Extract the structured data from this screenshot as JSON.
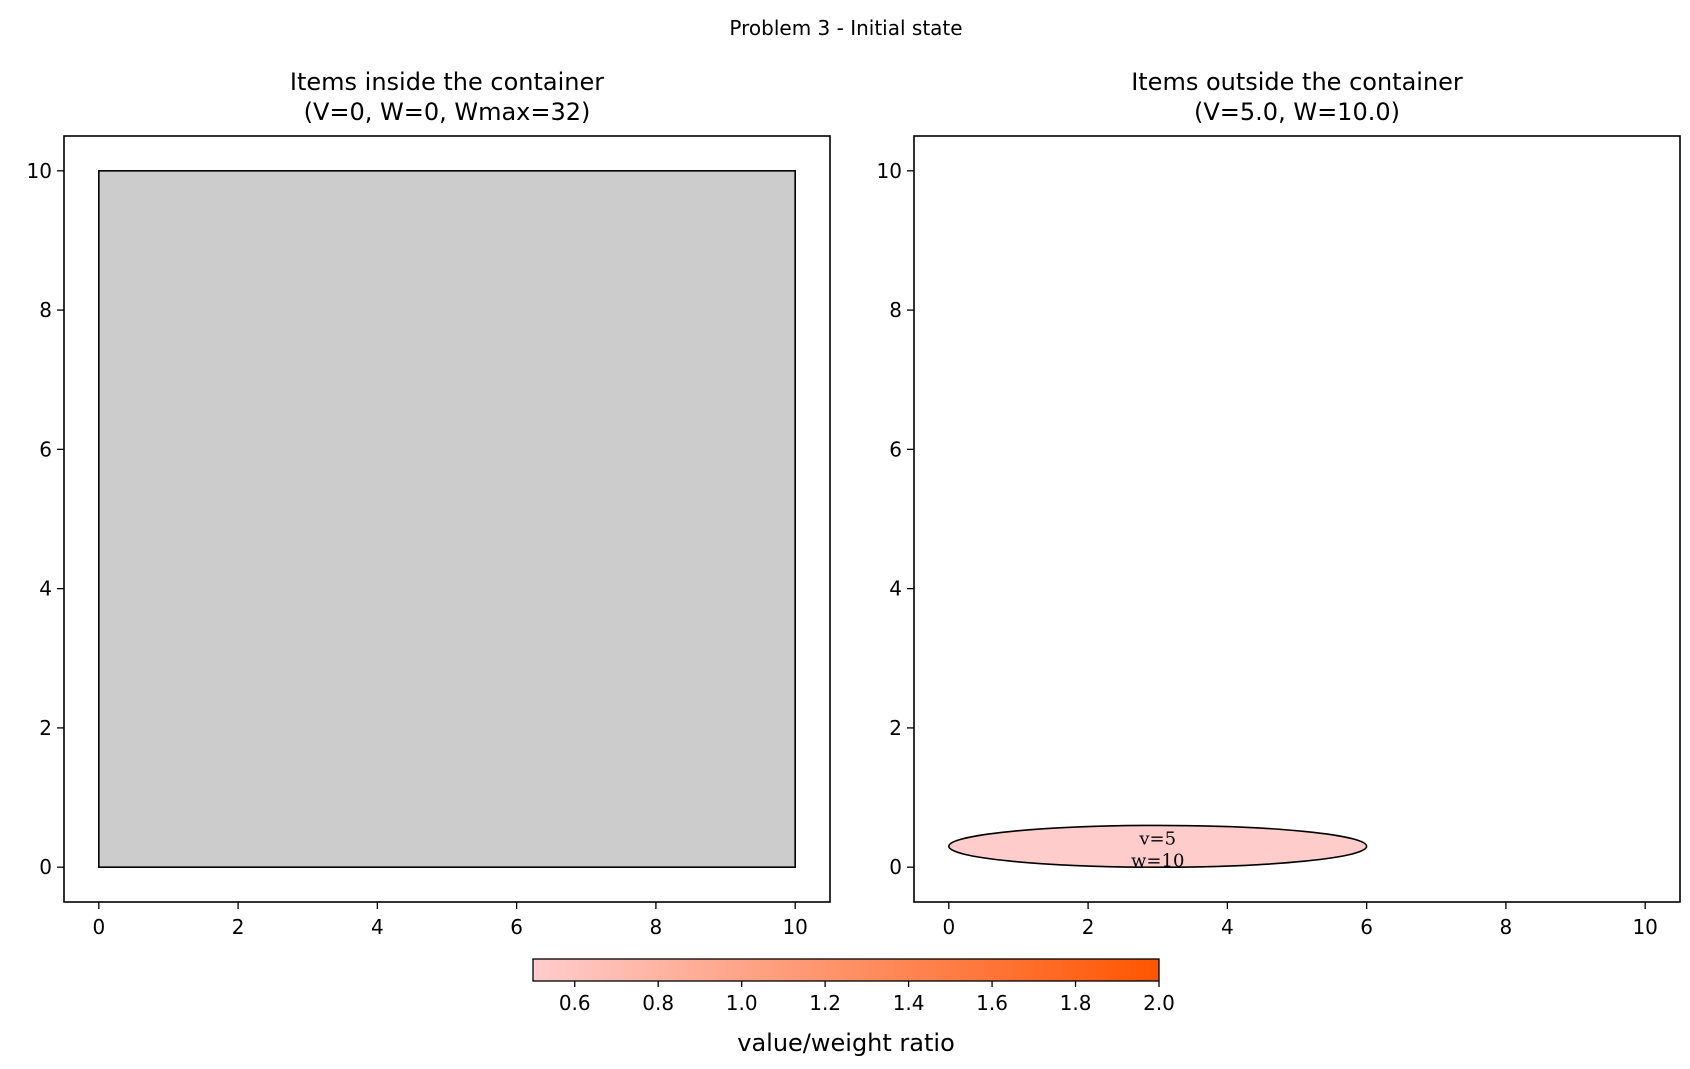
{
  "suptitle": "Problem 3 - Initial state",
  "chart_data": [
    {
      "type": "shapes",
      "title": "Items inside the container\n(V=0, W=0, Wmax=32)",
      "xlim": [
        -0.5,
        10.5
      ],
      "ylim": [
        -0.5,
        10.5
      ],
      "xticks": [
        0,
        2,
        4,
        6,
        8,
        10
      ],
      "yticks": [
        0,
        2,
        4,
        6,
        8,
        10
      ],
      "grid": false,
      "container": {
        "shape": "rectangle",
        "x_range": [
          0,
          10
        ],
        "y_range": [
          0,
          10
        ],
        "color": "#cccccc"
      },
      "items": []
    },
    {
      "type": "shapes",
      "title": "Items outside the container\n(V=5.0, W=10.0)",
      "xlim": [
        -0.5,
        10.5
      ],
      "ylim": [
        -0.5,
        10.5
      ],
      "xticks": [
        0,
        2,
        4,
        6,
        8,
        10
      ],
      "yticks": [
        0,
        2,
        4,
        6,
        8,
        10
      ],
      "grid": false,
      "items": [
        {
          "shape": "ellipse",
          "center": [
            3,
            0.3
          ],
          "x_semi_axis": 3,
          "y_semi_axis": 0.3,
          "value": 5,
          "weight": 10,
          "label": "v=5\nw=10",
          "color": "#ffcccc"
        }
      ]
    }
  ],
  "colorbar": {
    "label": "value/weight ratio",
    "range": [
      0.5,
      2.0
    ],
    "ticks": [
      "0.6",
      "0.8",
      "1.0",
      "1.2",
      "1.4",
      "1.6",
      "1.8",
      "2.0"
    ],
    "color_low": "#ffcccc",
    "color_high": "#ff5500"
  }
}
